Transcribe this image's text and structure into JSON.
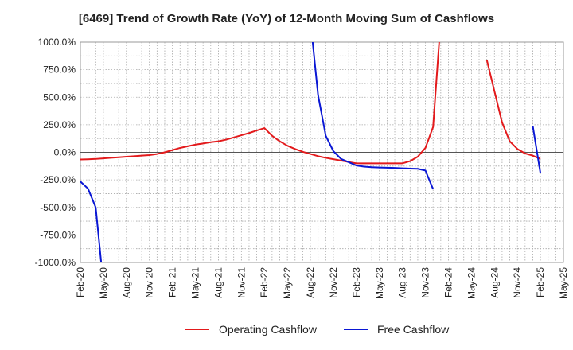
{
  "chart_data": {
    "type": "line",
    "title": "[6469]  Trend of Growth Rate (YoY) of 12-Month Moving Sum of Cashflows",
    "xlabel": "",
    "ylabel": "",
    "ylim": [
      -1000,
      1000
    ],
    "y_ticks": [
      "1000.0%",
      "750.0%",
      "500.0%",
      "250.0%",
      "0.0%",
      "-250.0%",
      "-500.0%",
      "-750.0%",
      "-1000.0%"
    ],
    "y_tick_values": [
      1000,
      750,
      500,
      250,
      0,
      -250,
      -500,
      -750,
      -1000
    ],
    "x_ticks": [
      "Feb-20",
      "May-20",
      "Aug-20",
      "Nov-20",
      "Feb-21",
      "May-21",
      "Aug-21",
      "Nov-21",
      "Feb-22",
      "May-22",
      "Aug-22",
      "Nov-22",
      "Feb-23",
      "May-23",
      "Aug-23",
      "Nov-23",
      "Feb-24",
      "May-24",
      "Aug-24",
      "Nov-24",
      "Feb-25",
      "May-25"
    ],
    "grid": true,
    "legend_position": "bottom",
    "series": [
      {
        "name": "Operating Cashflow",
        "color": "#e31a1c",
        "segments": [
          [
            [
              "Feb-20",
              -65
            ],
            [
              "Mar-20",
              -63
            ],
            [
              "Apr-20",
              -60
            ],
            [
              "May-20",
              -55
            ],
            [
              "Jun-20",
              -50
            ],
            [
              "Jul-20",
              -45
            ],
            [
              "Aug-20",
              -40
            ],
            [
              "Sep-20",
              -35
            ],
            [
              "Oct-20",
              -30
            ],
            [
              "Nov-20",
              -25
            ],
            [
              "Dec-20",
              -15
            ],
            [
              "Jan-21",
              0
            ],
            [
              "Feb-21",
              20
            ],
            [
              "Mar-21",
              40
            ],
            [
              "Apr-21",
              55
            ],
            [
              "May-21",
              70
            ],
            [
              "Jun-21",
              80
            ],
            [
              "Jul-21",
              92
            ],
            [
              "Aug-21",
              100
            ],
            [
              "Sep-21",
              115
            ],
            [
              "Oct-21",
              135
            ],
            [
              "Nov-21",
              155
            ],
            [
              "Dec-21",
              175
            ],
            [
              "Jan-22",
              198
            ],
            [
              "Feb-22",
              220
            ],
            [
              "Mar-22",
              150
            ],
            [
              "Apr-22",
              100
            ],
            [
              "May-22",
              60
            ],
            [
              "Jun-22",
              30
            ],
            [
              "Jul-22",
              5
            ],
            [
              "Aug-22",
              -15
            ],
            [
              "Sep-22",
              -35
            ],
            [
              "Oct-22",
              -50
            ],
            [
              "Nov-22",
              -62
            ],
            [
              "Dec-22",
              -75
            ],
            [
              "Jan-23",
              -88
            ],
            [
              "Feb-23",
              -100
            ],
            [
              "Mar-23",
              -100
            ],
            [
              "Apr-23",
              -100
            ],
            [
              "May-23",
              -100
            ],
            [
              "Jun-23",
              -100
            ],
            [
              "Jul-23",
              -100
            ],
            [
              "Aug-23",
              -100
            ],
            [
              "Sep-23",
              -80
            ],
            [
              "Oct-23",
              -40
            ],
            [
              "Nov-23",
              40
            ],
            [
              "Dec-23",
              230
            ],
            [
              "Jan-24",
              1200
            ]
          ],
          [
            [
              "Jul-24",
              840
            ],
            [
              "Sep-24",
              270
            ],
            [
              "Oct-24",
              100
            ],
            [
              "Nov-24",
              30
            ],
            [
              "Dec-24",
              -10
            ],
            [
              "Jan-25",
              -30
            ],
            [
              "Feb-25",
              -60
            ]
          ]
        ]
      },
      {
        "name": "Free Cashflow",
        "color": "#0a17d4",
        "segments": [
          [
            [
              "Feb-20",
              -265
            ],
            [
              "Mar-20",
              -330
            ],
            [
              "Apr-20",
              -500
            ],
            [
              "May-20",
              -1200
            ]
          ],
          [
            [
              "Aug-22",
              1200
            ],
            [
              "Sep-22",
              520
            ],
            [
              "Oct-22",
              150
            ],
            [
              "Nov-22",
              10
            ],
            [
              "Dec-22",
              -60
            ],
            [
              "Jan-23",
              -90
            ],
            [
              "Feb-23",
              -120
            ],
            [
              "Mar-23",
              -130
            ],
            [
              "Apr-23",
              -135
            ],
            [
              "May-23",
              -138
            ],
            [
              "Jun-23",
              -140
            ],
            [
              "Jul-23",
              -142
            ],
            [
              "Aug-23",
              -145
            ],
            [
              "Sep-23",
              -148
            ],
            [
              "Oct-23",
              -150
            ],
            [
              "Nov-23",
              -165
            ],
            [
              "Dec-23",
              -335
            ]
          ],
          [
            [
              "Jan-25",
              240
            ],
            [
              "Feb-25",
              -190
            ]
          ]
        ]
      }
    ]
  }
}
